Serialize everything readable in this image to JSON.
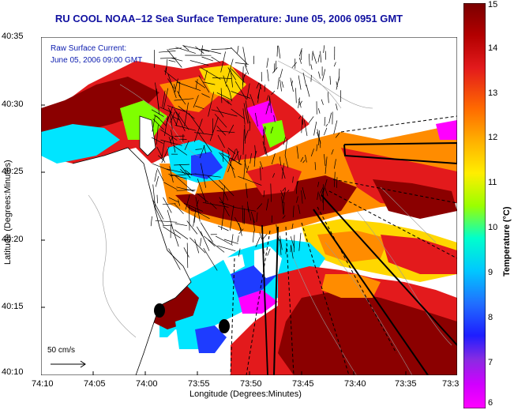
{
  "title": "RU COOL  NOAA–12  Sea Surface Temperature:  June 05, 2006 0951 GMT",
  "overlay": {
    "line1": "Raw Surface Current:",
    "line2": "June 05, 2006 09:00 GMT",
    "scale_label": "50 cm/s"
  },
  "axes": {
    "y_title": "Latitude (Degrees:Minutes)",
    "x_title": "Longitude (Degrees:Minutes)",
    "y_ticks": [
      "40:35",
      "40:30",
      "40:25",
      "40:20",
      "40:15",
      "40:10"
    ],
    "x_ticks": [
      "74:10",
      "74:05",
      "74:00",
      "73:55",
      "73:50",
      "73:45",
      "73:40",
      "73:35",
      "73:3"
    ]
  },
  "colorbar": {
    "title": "Temperature (°C)",
    "ticks": [
      "15",
      "14",
      "13",
      "12",
      "11",
      "10",
      "9",
      "8",
      "7",
      "6"
    ]
  },
  "colors": {
    "land": "#ffffff",
    "hot": "#8b0000",
    "warm": "#e31a1c",
    "mid": "#ff8c00",
    "yellow": "#ffd700",
    "green": "#7fff00",
    "cyan": "#00e5ff",
    "blue": "#1e3cff",
    "purple": "#8a2be2",
    "magenta": "#ff00ff"
  }
}
